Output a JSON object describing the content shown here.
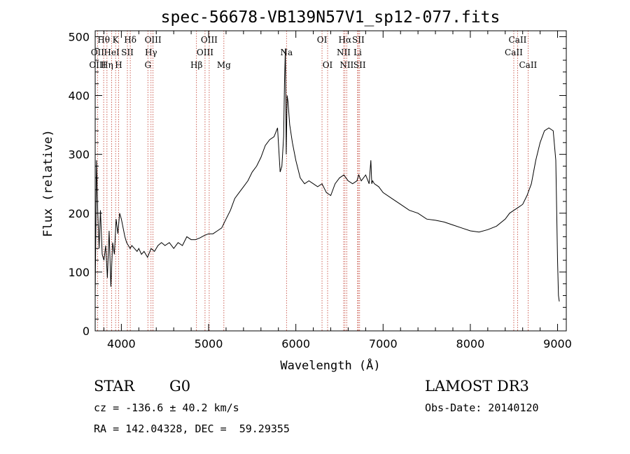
{
  "chart_data": {
    "type": "line",
    "title": "spec-56678-VB139N57V1_sp12-077.fits",
    "xlabel": "Wavelength (Å)",
    "ylabel": "Flux (relative)",
    "xlim": [
      3700,
      9100
    ],
    "ylim": [
      0,
      510
    ],
    "xticks": [
      4000,
      5000,
      6000,
      7000,
      8000,
      9000
    ],
    "yticks": [
      0,
      100,
      200,
      300,
      400,
      500
    ],
    "grid": false,
    "legend": "none",
    "spectrum": {
      "x": [
        3700,
        3715,
        3730,
        3745,
        3760,
        3780,
        3800,
        3820,
        3840,
        3860,
        3880,
        3900,
        3920,
        3940,
        3960,
        3980,
        4000,
        4020,
        4040,
        4060,
        4080,
        4100,
        4120,
        4150,
        4180,
        4200,
        4230,
        4260,
        4300,
        4340,
        4380,
        4420,
        4460,
        4500,
        4550,
        4600,
        4650,
        4700,
        4750,
        4800,
        4850,
        4900,
        4950,
        5000,
        5050,
        5100,
        5150,
        5200,
        5250,
        5300,
        5350,
        5400,
        5450,
        5500,
        5550,
        5600,
        5650,
        5700,
        5750,
        5790,
        5820,
        5840,
        5860,
        5870,
        5880,
        5890,
        5900,
        5910,
        5930,
        5960,
        6000,
        6050,
        6100,
        6150,
        6200,
        6250,
        6300,
        6350,
        6400,
        6450,
        6500,
        6550,
        6600,
        6650,
        6700,
        6720,
        6750,
        6800,
        6840,
        6860,
        6870,
        6880,
        6900,
        6950,
        7000,
        7100,
        7200,
        7300,
        7400,
        7500,
        7600,
        7700,
        7800,
        7900,
        8000,
        8100,
        8200,
        8300,
        8400,
        8450,
        8500,
        8550,
        8600,
        8650,
        8700,
        8750,
        8800,
        8850,
        8900,
        8950,
        8980,
        9000,
        9010,
        9020
      ],
      "y": [
        60,
        290,
        200,
        140,
        205,
        130,
        120,
        145,
        90,
        170,
        75,
        150,
        130,
        190,
        165,
        200,
        190,
        175,
        160,
        150,
        145,
        140,
        145,
        140,
        135,
        140,
        130,
        135,
        125,
        140,
        135,
        145,
        150,
        145,
        150,
        140,
        150,
        145,
        160,
        155,
        155,
        158,
        162,
        165,
        165,
        170,
        175,
        190,
        205,
        225,
        235,
        245,
        255,
        270,
        280,
        295,
        315,
        325,
        330,
        345,
        270,
        280,
        330,
        420,
        480,
        300,
        400,
        390,
        350,
        320,
        290,
        260,
        250,
        255,
        250,
        245,
        250,
        235,
        230,
        250,
        260,
        265,
        255,
        250,
        255,
        265,
        255,
        265,
        250,
        290,
        250,
        255,
        250,
        245,
        235,
        225,
        215,
        205,
        200,
        190,
        188,
        185,
        180,
        175,
        170,
        168,
        172,
        178,
        190,
        200,
        205,
        210,
        215,
        230,
        250,
        290,
        320,
        340,
        345,
        340,
        290,
        120,
        60,
        50
      ]
    },
    "lines": [
      {
        "label": "Hθ",
        "x": 3797,
        "row": 0
      },
      {
        "label": "OII",
        "x": 3727,
        "row": 1
      },
      {
        "label": "OIII",
        "x": 3727,
        "row": 2
      },
      {
        "label": "K",
        "x": 3934,
        "row": 0
      },
      {
        "label": "HeI",
        "x": 3889,
        "row": 1
      },
      {
        "label": "Hη",
        "x": 3835,
        "row": 2
      },
      {
        "label": "SII",
        "x": 4069,
        "row": 1
      },
      {
        "label": "H",
        "x": 3969,
        "row": 2
      },
      {
        "label": "Hδ",
        "x": 4102,
        "row": 0
      },
      {
        "label": "OIII",
        "x": 4363,
        "row": 0
      },
      {
        "label": "Hγ",
        "x": 4340,
        "row": 1
      },
      {
        "label": "G",
        "x": 4304,
        "row": 2
      },
      {
        "label": "OIII",
        "x": 5007,
        "row": 0
      },
      {
        "label": "OIII",
        "x": 4959,
        "row": 1
      },
      {
        "label": "Hβ",
        "x": 4861,
        "row": 2
      },
      {
        "label": "Mg",
        "x": 5175,
        "row": 2
      },
      {
        "label": "Na",
        "x": 5893,
        "row": 1
      },
      {
        "label": "OI",
        "x": 6300,
        "row": 0
      },
      {
        "label": "OI",
        "x": 6364,
        "row": 2
      },
      {
        "label": "Hα",
        "x": 6563,
        "row": 0
      },
      {
        "label": "SII",
        "x": 6716,
        "row": 0
      },
      {
        "label": "NII",
        "x": 6548,
        "row": 1
      },
      {
        "label": "Li",
        "x": 6708,
        "row": 1
      },
      {
        "label": "NII",
        "x": 6583,
        "row": 2
      },
      {
        "label": "SII",
        "x": 6731,
        "row": 2
      },
      {
        "label": "CaII",
        "x": 8542,
        "row": 0
      },
      {
        "label": "CaII",
        "x": 8498,
        "row": 1
      },
      {
        "label": "CaII",
        "x": 8662,
        "row": 2
      }
    ]
  },
  "info": {
    "object_class": "STAR",
    "subclass": "G0",
    "survey": "LAMOST DR3",
    "redshift": "cz = -136.6 ± 40.2 km/s",
    "obs_date": "Obs-Date: 20140120",
    "coords": "RA = 142.04328, DEC =  59.29355"
  },
  "colors": {
    "spectrum": "#000000",
    "line_marker": "#c0392b",
    "axis": "#000000",
    "background": "#ffffff"
  }
}
